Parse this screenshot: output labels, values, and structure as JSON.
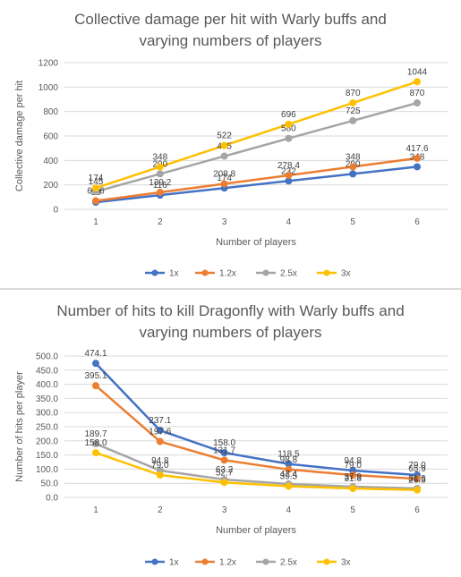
{
  "chart_data": [
    {
      "type": "line",
      "title_line1": "Collective damage per hit with Warly buffs and",
      "title_line2": "varying numbers of players",
      "xlabel": "Number of players",
      "ylabel": "Collective damage per hit",
      "categories": [
        "1",
        "2",
        "3",
        "4",
        "5",
        "6"
      ],
      "ylim": [
        0,
        1200
      ],
      "yticks": [
        "0",
        "200",
        "400",
        "600",
        "800",
        "1000",
        "1200"
      ],
      "ytick_values": [
        0,
        200,
        400,
        600,
        800,
        1000,
        1200
      ],
      "grid": true,
      "legend": "bottom",
      "series": [
        {
          "name": "1x",
          "color": "#4472c4",
          "values": [
            58,
            116,
            174,
            232,
            290,
            348
          ],
          "labels": [
            "58",
            "116",
            "174",
            "232",
            "290",
            "348"
          ]
        },
        {
          "name": "1.2x",
          "color": "#ed7d31",
          "values": [
            69.6,
            139.2,
            208.8,
            278.4,
            348,
            417.6
          ],
          "labels": [
            "69.6",
            "139.2",
            "208.8",
            "278.4",
            "348",
            "417.6"
          ]
        },
        {
          "name": "2.5x",
          "color": "#a5a5a5",
          "values": [
            145,
            290,
            435,
            580,
            725,
            870
          ],
          "labels": [
            "145",
            "290",
            "435",
            "580",
            "725",
            "870"
          ]
        },
        {
          "name": "3x",
          "color": "#ffc000",
          "values": [
            174,
            348,
            522,
            696,
            870,
            1044
          ],
          "labels": [
            "174",
            "348",
            "522",
            "696",
            "870",
            "1044"
          ]
        }
      ]
    },
    {
      "type": "line",
      "title_line1": "Number of hits to kill Dragonfly with Warly buffs and",
      "title_line2": "varying numbers of players",
      "xlabel": "Number of players",
      "ylabel": "Number of hits per player",
      "categories": [
        "1",
        "2",
        "3",
        "4",
        "5",
        "6"
      ],
      "ylim": [
        0,
        500
      ],
      "yticks": [
        "0.0",
        "50.0",
        "100.0",
        "150.0",
        "200.0",
        "250.0",
        "300.0",
        "350.0",
        "400.0",
        "450.0",
        "500.0"
      ],
      "ytick_values": [
        0,
        50,
        100,
        150,
        200,
        250,
        300,
        350,
        400,
        450,
        500
      ],
      "grid": true,
      "legend": "bottom",
      "series": [
        {
          "name": "1x",
          "color": "#4472c4",
          "values": [
            474.1,
            237.1,
            158.0,
            118.5,
            94.8,
            79.0
          ],
          "labels": [
            "474.1",
            "237.1",
            "158.0",
            "118.5",
            "94.8",
            "79.0"
          ]
        },
        {
          "name": "1.2x",
          "color": "#ed7d31",
          "values": [
            395.1,
            197.6,
            131.7,
            98.8,
            79.0,
            65.9
          ],
          "labels": [
            "395.1",
            "197.6",
            "131.7",
            "98.8",
            "79.0",
            "65.9"
          ]
        },
        {
          "name": "2.5x",
          "color": "#a5a5a5",
          "values": [
            189.7,
            94.8,
            63.2,
            47.4,
            37.9,
            31.6
          ],
          "labels": [
            "189.7",
            "94.8",
            "63.2",
            "47.4",
            "37.9",
            "31.6"
          ]
        },
        {
          "name": "3x",
          "color": "#ffc000",
          "values": [
            158.0,
            79.0,
            52.7,
            39.5,
            31.6,
            26.3
          ],
          "labels": [
            "158.0",
            "79.0",
            "52.7",
            "39.5",
            "31.6",
            "26.3"
          ]
        }
      ]
    }
  ]
}
